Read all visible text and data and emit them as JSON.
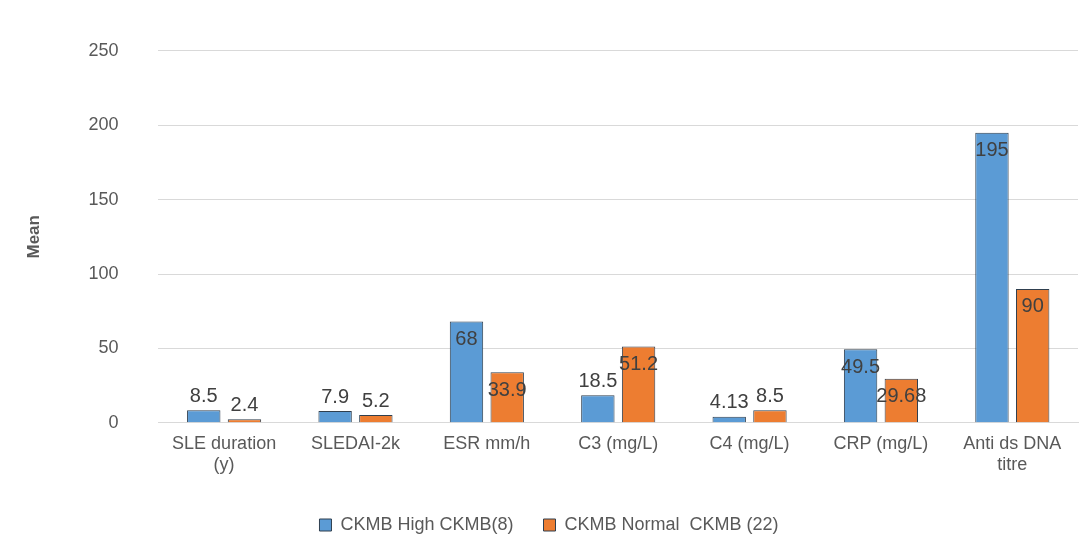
{
  "chart_data": {
    "type": "bar",
    "ylabel": "Mean",
    "categories": [
      "SLE duration (y)",
      "SLEDAI-2k",
      "ESR mm/h",
      "C3 (mg/L)",
      "C4 (mg/L)",
      "CRP (mg/L)",
      "Anti ds DNA titre"
    ],
    "series": [
      {
        "name": "CKMB High CKMB(8)",
        "color": "#5b9bd5",
        "values": [
          8.5,
          7.9,
          68,
          18.5,
          4.13,
          49.5,
          195
        ]
      },
      {
        "name": "CKMB Normal  CKMB (22)",
        "color": "#ed7d31",
        "values": [
          2.4,
          5.2,
          33.9,
          51.2,
          8.5,
          29.68,
          90
        ]
      }
    ],
    "ylim": [
      0,
      250
    ],
    "yticks": [
      0,
      50,
      100,
      150,
      200,
      250
    ],
    "grid": "y",
    "legend": "bottom",
    "data_labels": true
  }
}
